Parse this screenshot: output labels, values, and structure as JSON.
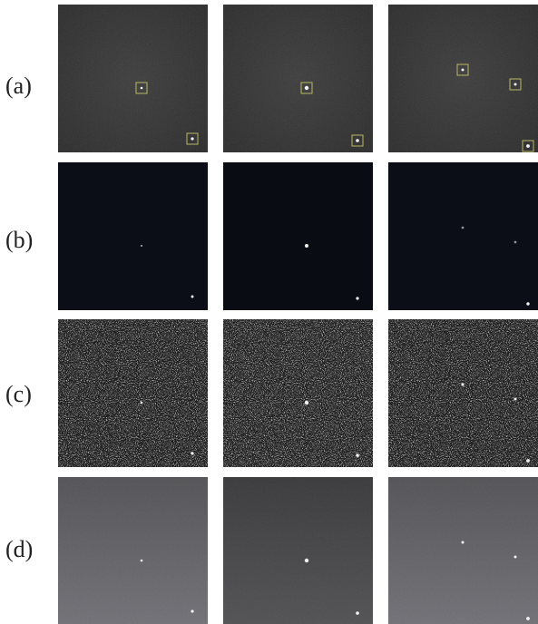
{
  "rows": [
    {
      "label": "(a)"
    },
    {
      "label": "(b)"
    },
    {
      "label": "(c)"
    },
    {
      "label": "(d)"
    }
  ]
}
